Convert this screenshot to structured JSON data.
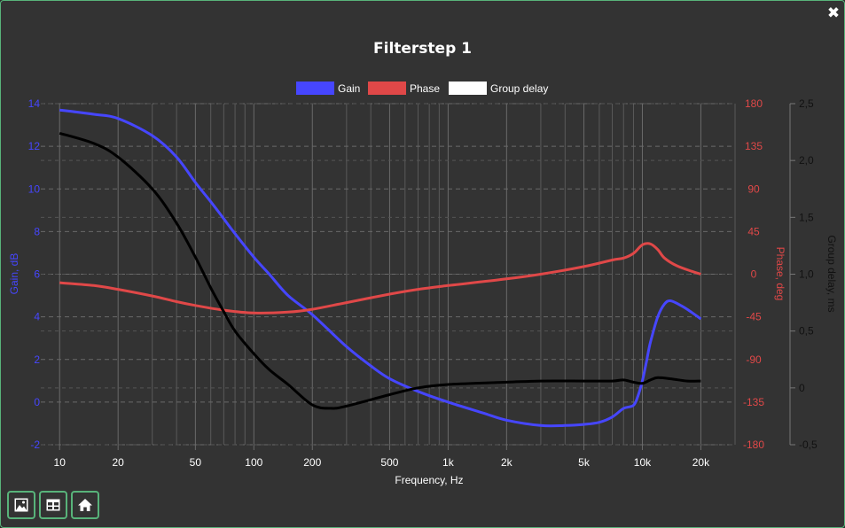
{
  "window": {
    "close_glyph": "✖"
  },
  "chart_data": {
    "type": "line",
    "title": "Filterstep 1",
    "xlabel": "Frequency, Hz",
    "xscale": "log",
    "xlim": [
      8,
      30000
    ],
    "xticks": [
      10,
      20,
      50,
      100,
      200,
      500,
      1000,
      2000,
      5000,
      10000,
      20000
    ],
    "xticklabels": [
      "10",
      "20",
      "50",
      "100",
      "200",
      "500",
      "1k",
      "2k",
      "5k",
      "10k",
      "20k"
    ],
    "grid": true,
    "legend_position": "top",
    "axes": {
      "gain": {
        "label": "Gain, dB",
        "side": "left",
        "range": [
          -2,
          14
        ],
        "ticks": [
          "-2",
          "0",
          "2",
          "4",
          "6",
          "8",
          "10",
          "12",
          "14"
        ],
        "color": "#4646ff"
      },
      "phase": {
        "label": "Phase, deg",
        "side": "right",
        "range": [
          -180,
          180
        ],
        "ticks": [
          "-180",
          "-135",
          "-90",
          "-45",
          "0",
          "45",
          "90",
          "135",
          "180"
        ],
        "color": "#e04848"
      },
      "delay": {
        "label": "Group delay, ms",
        "side": "right-outer",
        "range": [
          -0.5,
          2.5
        ],
        "ticks": [
          "-0,5",
          "0",
          "0,5",
          "1,0",
          "1,5",
          "2,0",
          "2,5"
        ],
        "color": "#111111"
      }
    },
    "series": [
      {
        "name": "Gain",
        "axis": "gain",
        "color": "#4646ff",
        "legend_color": "#4646ff",
        "points": [
          [
            10,
            13.7
          ],
          [
            15,
            13.5
          ],
          [
            20,
            13.3
          ],
          [
            30,
            12.5
          ],
          [
            40,
            11.5
          ],
          [
            50,
            10.3
          ],
          [
            60,
            9.4
          ],
          [
            70,
            8.6
          ],
          [
            80,
            7.9
          ],
          [
            100,
            6.8
          ],
          [
            120,
            6.0
          ],
          [
            150,
            5.0
          ],
          [
            200,
            4.1
          ],
          [
            300,
            2.6
          ],
          [
            400,
            1.7
          ],
          [
            500,
            1.1
          ],
          [
            700,
            0.5
          ],
          [
            1000,
            0.0
          ],
          [
            1500,
            -0.5
          ],
          [
            2000,
            -0.85
          ],
          [
            3000,
            -1.1
          ],
          [
            4000,
            -1.1
          ],
          [
            5000,
            -1.05
          ],
          [
            6000,
            -0.95
          ],
          [
            7000,
            -0.7
          ],
          [
            8000,
            -0.3
          ],
          [
            9000,
            -0.15
          ],
          [
            9500,
            0.3
          ],
          [
            10000,
            1.0
          ],
          [
            10500,
            1.9
          ],
          [
            11000,
            2.8
          ],
          [
            12000,
            4.0
          ],
          [
            13000,
            4.6
          ],
          [
            14000,
            4.75
          ],
          [
            16000,
            4.5
          ],
          [
            18000,
            4.2
          ],
          [
            20000,
            3.9
          ]
        ]
      },
      {
        "name": "Phase",
        "axis": "phase",
        "color": "#e04848",
        "legend_color": "#e04848",
        "points": [
          [
            10,
            -9
          ],
          [
            15,
            -12
          ],
          [
            20,
            -16
          ],
          [
            30,
            -23
          ],
          [
            40,
            -29
          ],
          [
            50,
            -33
          ],
          [
            70,
            -38
          ],
          [
            100,
            -41
          ],
          [
            150,
            -40
          ],
          [
            200,
            -37
          ],
          [
            300,
            -30
          ],
          [
            500,
            -21
          ],
          [
            700,
            -16
          ],
          [
            1000,
            -12
          ],
          [
            2000,
            -5
          ],
          [
            3000,
            0
          ],
          [
            5000,
            8
          ],
          [
            7000,
            15
          ],
          [
            8000,
            17
          ],
          [
            9000,
            22
          ],
          [
            10000,
            31
          ],
          [
            11000,
            32
          ],
          [
            12000,
            26
          ],
          [
            13000,
            17
          ],
          [
            15000,
            9
          ],
          [
            18000,
            3
          ],
          [
            20000,
            0
          ]
        ]
      },
      {
        "name": "Group delay",
        "axis": "delay",
        "color": "#000000",
        "legend_color": "#ffffff",
        "points": [
          [
            10,
            2.24
          ],
          [
            15,
            2.15
          ],
          [
            20,
            2.03
          ],
          [
            30,
            1.75
          ],
          [
            40,
            1.45
          ],
          [
            50,
            1.15
          ],
          [
            60,
            0.88
          ],
          [
            70,
            0.67
          ],
          [
            80,
            0.5
          ],
          [
            100,
            0.3
          ],
          [
            120,
            0.16
          ],
          [
            150,
            0.03
          ],
          [
            200,
            -0.15
          ],
          [
            250,
            -0.18
          ],
          [
            300,
            -0.16
          ],
          [
            500,
            -0.06
          ],
          [
            700,
            0.0
          ],
          [
            1000,
            0.03
          ],
          [
            2000,
            0.05
          ],
          [
            3000,
            0.06
          ],
          [
            5000,
            0.06
          ],
          [
            7000,
            0.06
          ],
          [
            8000,
            0.07
          ],
          [
            9000,
            0.05
          ],
          [
            10000,
            0.04
          ],
          [
            11000,
            0.07
          ],
          [
            12000,
            0.09
          ],
          [
            14000,
            0.08
          ],
          [
            17000,
            0.06
          ],
          [
            20000,
            0.06
          ]
        ]
      }
    ]
  },
  "toolbar": [
    {
      "name": "save-image-button",
      "icon": "image-icon"
    },
    {
      "name": "table-view-button",
      "icon": "table-icon"
    },
    {
      "name": "home-button",
      "icon": "home-icon"
    }
  ]
}
